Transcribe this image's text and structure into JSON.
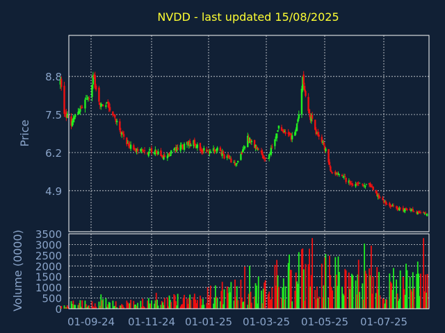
{
  "colors": {
    "background": "#112035",
    "title": "#ffff33",
    "axis_text": "#8aa4c9",
    "grid": "#ffffff",
    "frame": "#ffffff",
    "up": "#22ee22",
    "down": "#ee1111"
  },
  "chart_data": [
    {
      "type": "candlestick",
      "title": "NVDD - last updated 15/08/2025",
      "ylabel": "Price",
      "xlabel": "",
      "ylim": [
        3.5,
        10.2
      ],
      "yticks": [
        8.8,
        7.5,
        6.2,
        4.9
      ],
      "grid": true,
      "series_anchors": {
        "description_note": "",
        "dates": [
          "2024-08-01",
          "2024-08-05",
          "2024-08-12",
          "2024-08-20",
          "2024-09-01",
          "2024-09-03",
          "2024-09-10",
          "2024-09-16",
          "2024-09-25",
          "2024-10-05",
          "2024-10-15",
          "2024-10-25",
          "2024-11-05",
          "2024-11-15",
          "2024-11-25",
          "2024-12-05",
          "2024-12-15",
          "2024-12-25",
          "2025-01-01",
          "2025-01-10",
          "2025-01-20",
          "2025-01-30",
          "2025-02-10",
          "2025-02-20",
          "2025-03-01",
          "2025-03-08",
          "2025-03-14",
          "2025-03-22",
          "2025-03-30",
          "2025-04-05",
          "2025-04-08",
          "2025-04-15",
          "2025-04-22",
          "2025-04-30",
          "2025-05-08",
          "2025-05-15",
          "2025-05-25",
          "2025-06-05",
          "2025-06-15",
          "2025-06-25",
          "2025-07-05",
          "2025-07-15",
          "2025-07-25",
          "2025-08-05",
          "2025-08-15"
        ],
        "close": [
          8.6,
          7.6,
          7.2,
          7.6,
          8.2,
          8.8,
          7.8,
          7.9,
          7.4,
          6.6,
          6.3,
          6.2,
          6.3,
          6.0,
          6.3,
          6.4,
          6.6,
          6.3,
          6.2,
          6.3,
          6.0,
          5.8,
          6.7,
          6.3,
          5.9,
          6.5,
          7.1,
          6.8,
          6.7,
          7.6,
          8.8,
          7.5,
          6.9,
          6.5,
          5.5,
          5.5,
          5.2,
          5.1,
          5.1,
          4.7,
          4.4,
          4.3,
          4.25,
          4.15,
          4.1
        ]
      },
      "x_ticks": [
        "01-09-24",
        "01-11-24",
        "01-01-25",
        "01-03-25",
        "01-05-25",
        "01-07-25"
      ]
    },
    {
      "type": "bar",
      "ylabel": "Volume (0000)",
      "xlabel": "",
      "ylim": [
        0,
        3500
      ],
      "yticks": [
        3500,
        3000,
        2500,
        2000,
        1500,
        1000,
        500,
        0
      ],
      "x_ticks": [
        "01-09-24",
        "01-11-24",
        "01-01-25",
        "01-03-25",
        "01-05-25",
        "01-07-25"
      ],
      "grid": true,
      "volume_anchors": {
        "dates": [
          "2024-08-01",
          "2024-09-15",
          "2024-11-01",
          "2024-12-15",
          "2025-01-20",
          "2025-02-20",
          "2025-03-15",
          "2025-04-10",
          "2025-05-10",
          "2025-06-15",
          "2025-07-15",
          "2025-08-15"
        ],
        "typical": [
          200,
          300,
          300,
          500,
          800,
          900,
          1500,
          1700,
          1500,
          1300,
          1100,
          1600
        ]
      }
    }
  ]
}
